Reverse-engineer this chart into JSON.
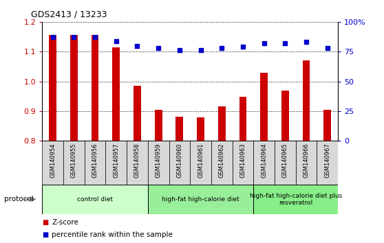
{
  "title": "GDS2413 / 13233",
  "samples": [
    "GSM140954",
    "GSM140955",
    "GSM140956",
    "GSM140957",
    "GSM140958",
    "GSM140959",
    "GSM140960",
    "GSM140961",
    "GSM140962",
    "GSM140963",
    "GSM140964",
    "GSM140965",
    "GSM140966",
    "GSM140967"
  ],
  "z_scores": [
    1.155,
    1.155,
    1.155,
    1.115,
    0.985,
    0.905,
    0.882,
    0.88,
    0.915,
    0.948,
    1.03,
    0.968,
    1.07,
    0.905
  ],
  "percentile_ranks": [
    87,
    87,
    87,
    84,
    80,
    78,
    76,
    76,
    78,
    79,
    82,
    82,
    83,
    78
  ],
  "bar_color": "#cc0000",
  "dot_color": "#0000cc",
  "ylim_left": [
    0.8,
    1.2
  ],
  "ylim_right": [
    0,
    100
  ],
  "yticks_left": [
    0.8,
    0.9,
    1.0,
    1.1,
    1.2
  ],
  "yticks_right": [
    0,
    25,
    50,
    75,
    100
  ],
  "ytick_labels_right": [
    "0",
    "25",
    "50",
    "75",
    "100%"
  ],
  "groups": [
    {
      "label": "control diet",
      "start": 0,
      "end": 4,
      "color": "#ccffcc"
    },
    {
      "label": "high-fat high-calorie diet",
      "start": 5,
      "end": 9,
      "color": "#99ee99"
    },
    {
      "label": "high-fat high-calorie diet plus\nresveratrol",
      "start": 10,
      "end": 13,
      "color": "#88ee88"
    }
  ],
  "protocol_label": "protocol",
  "legend_bar_label": "Z-score",
  "legend_dot_label": "percentile rank within the sample",
  "background_color": "#ffffff",
  "plot_bg_color": "#ffffff"
}
